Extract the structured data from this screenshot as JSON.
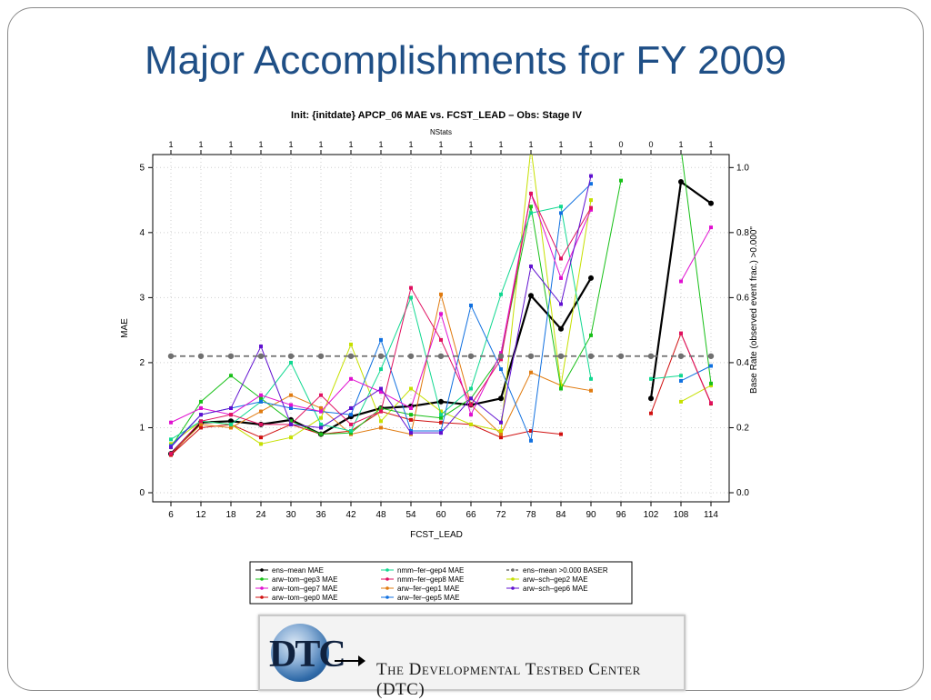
{
  "slide": {
    "title": "Major Accomplishments for  FY 2009"
  },
  "logo": {
    "mark": "DTC",
    "text": "The Developmental Testbed Center (DTC)"
  },
  "chart_data": {
    "type": "line",
    "title": "Init: {initdate} APCP_06 MAE vs. FCST_LEAD – Obs: Stage IV",
    "xlabel": "FCST_LEAD",
    "ylabel": "MAE",
    "y2label": "Base Rate (observed event frac.) >0.000\"",
    "top_label": "NStats",
    "x": [
      6,
      12,
      18,
      24,
      30,
      36,
      42,
      48,
      54,
      60,
      66,
      72,
      78,
      84,
      90,
      96,
      102,
      108,
      114
    ],
    "nstats": [
      "1",
      "1",
      "1",
      "1",
      "1",
      "1",
      "1",
      "1",
      "1",
      "1",
      "1",
      "1",
      "1",
      "1",
      "1",
      "0",
      "0",
      "1",
      "1"
    ],
    "ylim": [
      0,
      5.2
    ],
    "yticks": [
      "0",
      "1",
      "2",
      "3",
      "4",
      "5"
    ],
    "y2lim": [
      0,
      1.0
    ],
    "y2ticks": [
      "0.0",
      "0.2",
      "0.4",
      "0.6",
      "0.8",
      "1.0"
    ],
    "grid": true,
    "legend_placement": "bottom",
    "series": [
      {
        "name": "ens–mean MAE",
        "color": "#000000",
        "width": 2.2,
        "values": [
          0.6,
          1.08,
          1.1,
          1.05,
          1.12,
          0.9,
          1.17,
          1.3,
          1.33,
          1.4,
          1.35,
          1.45,
          3.03,
          2.52,
          3.3,
          null,
          1.45,
          4.78,
          4.45
        ]
      },
      {
        "name": "arw–tom–gep0 MAE",
        "color": "#d01010",
        "values": [
          0.58,
          1.0,
          1.05,
          0.85,
          1.05,
          0.9,
          0.95,
          1.25,
          1.12,
          1.08,
          1.05,
          0.85,
          0.95,
          0.9,
          null,
          null,
          1.22,
          2.45,
          1.37
        ]
      },
      {
        "name": "arw–fer–gep1 MAE",
        "color": "#e07b10",
        "values": [
          0.6,
          1.05,
          1.0,
          1.25,
          1.5,
          1.3,
          0.9,
          1.0,
          0.9,
          3.05,
          1.35,
          0.9,
          1.85,
          1.65,
          1.57,
          null,
          null,
          null,
          null
        ]
      },
      {
        "name": "arw–sch–gep2 MAE",
        "color": "#c6e000",
        "values": [
          0.75,
          1.1,
          1.05,
          0.75,
          0.85,
          1.15,
          2.28,
          1.1,
          1.6,
          1.25,
          1.05,
          0.95,
          5.3,
          1.65,
          4.5,
          null,
          null,
          1.4,
          1.65
        ]
      },
      {
        "name": "arw–tom–gep3 MAE",
        "color": "#18c018",
        "values": [
          0.7,
          1.4,
          1.8,
          1.45,
          1.1,
          0.9,
          0.92,
          1.3,
          1.2,
          1.15,
          1.45,
          2.1,
          4.4,
          1.6,
          2.42,
          4.8,
          null,
          5.3,
          1.68
        ]
      },
      {
        "name": "nmm–fer–gep4 MAE",
        "color": "#10d890",
        "values": [
          0.82,
          1.1,
          1.05,
          1.4,
          2.0,
          1.05,
          0.95,
          1.9,
          3.0,
          1.2,
          1.6,
          3.05,
          4.3,
          4.4,
          1.75,
          null,
          1.75,
          1.8,
          null
        ]
      },
      {
        "name": "arw–fer–gep5 MAE",
        "color": "#1070e0",
        "values": [
          0.72,
          1.2,
          1.3,
          1.4,
          1.3,
          1.25,
          1.2,
          2.35,
          0.95,
          0.95,
          2.88,
          1.9,
          0.8,
          4.3,
          4.75,
          null,
          null,
          1.72,
          1.95
        ]
      },
      {
        "name": "arw–tom–gep7 MAE",
        "color": "#e010d0",
        "values": [
          1.08,
          1.3,
          1.2,
          1.5,
          1.35,
          1.25,
          1.75,
          1.55,
          1.3,
          2.75,
          1.2,
          2.15,
          4.6,
          3.3,
          4.35,
          null,
          null,
          3.25,
          4.08
        ]
      },
      {
        "name": "nmm–fer–gep8 MAE",
        "color": "#e01060",
        "values": [
          0.6,
          1.1,
          1.2,
          1.05,
          1.05,
          1.5,
          1.05,
          1.25,
          3.15,
          2.35,
          1.35,
          2.05,
          4.6,
          3.6,
          4.38,
          null,
          null,
          2.45,
          1.38
        ]
      },
      {
        "name": "arw–sch–gep6 MAE",
        "color": "#6010d0",
        "values": [
          0.7,
          1.2,
          1.3,
          2.25,
          1.05,
          1.0,
          1.3,
          1.6,
          0.92,
          0.92,
          1.45,
          1.08,
          3.48,
          2.9,
          4.87,
          null,
          null,
          null,
          null
        ]
      },
      {
        "name": "ens–mean >0.000 BASER",
        "color": "#707070",
        "dashed": true,
        "width": 1.8,
        "values": [
          2.1,
          2.1,
          2.1,
          2.1,
          2.1,
          2.1,
          2.1,
          2.1,
          2.1,
          2.1,
          2.1,
          2.1,
          2.1,
          2.1,
          2.1,
          2.1,
          2.1,
          2.1,
          2.1
        ]
      }
    ],
    "legend_order": [
      0,
      4,
      7,
      1,
      5,
      8,
      2,
      6,
      10,
      3,
      9
    ]
  }
}
